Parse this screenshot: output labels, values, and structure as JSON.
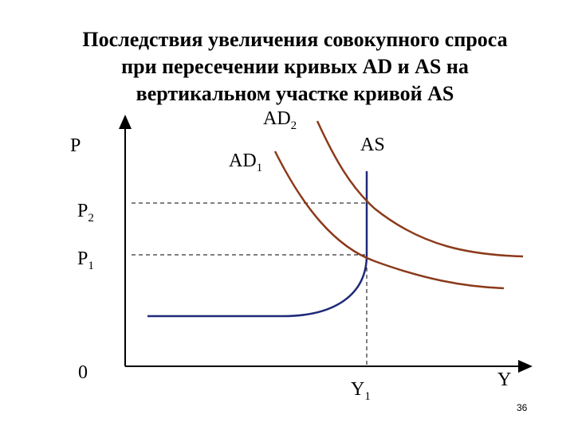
{
  "title": {
    "lines": [
      "Последствия увеличения совокупного спроса",
      "при пересечении кривых AD и AS на",
      "вертикальном участке кривой AS"
    ]
  },
  "axes": {
    "y_label": "P",
    "x_label": "Y",
    "origin": "0"
  },
  "levels": {
    "p2": {
      "main": "P",
      "sub": "2"
    },
    "p1": {
      "main": "P",
      "sub": "1"
    },
    "y1": {
      "main": "Y",
      "sub": "1"
    }
  },
  "curves": {
    "ad2": {
      "main": "AD",
      "sub": "2"
    },
    "ad1": {
      "main": "AD",
      "sub": "1"
    },
    "as": "AS"
  },
  "page_number": "36"
}
